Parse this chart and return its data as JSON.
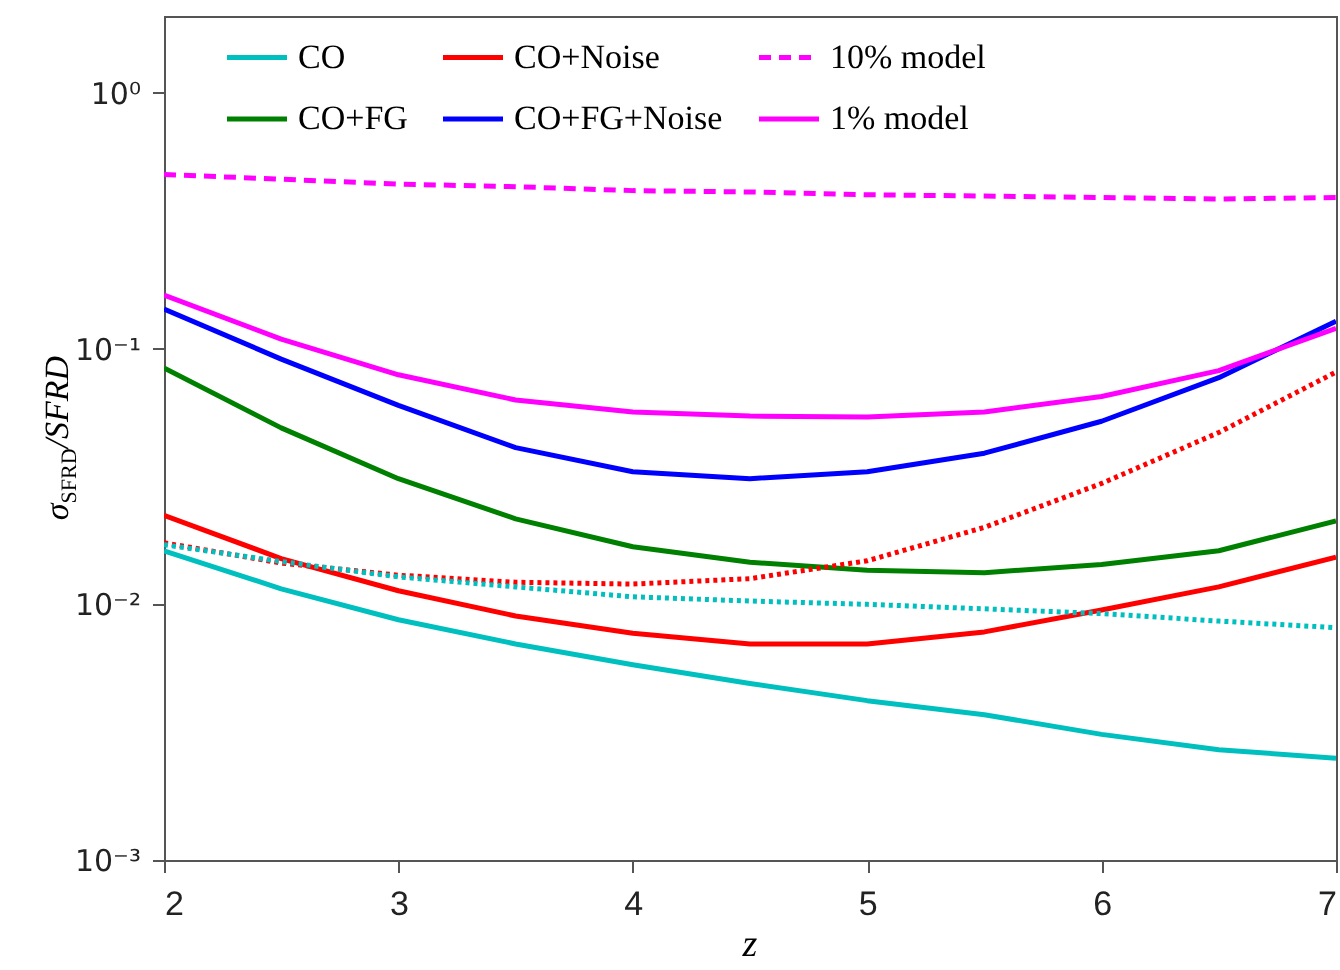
{
  "chart_data": {
    "type": "line",
    "xlabel": "z",
    "ylabel": "σ$_{SFRD}$/SFRD",
    "log": "y",
    "x": [
      2,
      2.5,
      3,
      3.5,
      4,
      4.5,
      5,
      5.5,
      6,
      6.5,
      7
    ],
    "xlim": [
      2,
      7
    ],
    "xticks": [
      2,
      3,
      4,
      5,
      6,
      7
    ],
    "ylim": [
      0.001,
      2
    ],
    "yticks": [
      {
        "value": 0.001,
        "label": "10⁻³"
      },
      {
        "value": 0.01,
        "label": "10⁻²"
      },
      {
        "value": 0.1,
        "label": "10⁻¹"
      },
      {
        "value": 1,
        "label": "10⁰"
      }
    ],
    "legend": "top",
    "series": [
      {
        "name": "CO",
        "color": "#00bfbf",
        "line_style": "solid",
        "values": [
          0.0162,
          0.0115,
          0.0087,
          0.007,
          0.0058,
          0.0049,
          0.0042,
          0.0037,
          0.0031,
          0.0027,
          0.0025
        ]
      },
      {
        "name": "CO+FG",
        "color": "#008000",
        "line_style": "solid",
        "values": [
          0.084,
          0.049,
          0.031,
          0.0216,
          0.0168,
          0.0146,
          0.0136,
          0.0133,
          0.0143,
          0.0162,
          0.0212
        ]
      },
      {
        "name": "CO+Noise",
        "color": "#ff0000",
        "line_style": "solid",
        "values": [
          0.0223,
          0.0151,
          0.0113,
          0.009,
          0.0077,
          0.007,
          0.007,
          0.0078,
          0.0095,
          0.0117,
          0.0153
        ]
      },
      {
        "name": "CO+FG+Noise",
        "color": "#0000ff",
        "line_style": "solid",
        "values": [
          0.143,
          0.091,
          0.06,
          0.041,
          0.033,
          0.031,
          0.033,
          0.039,
          0.052,
          0.077,
          0.128
        ]
      },
      {
        "name": "10% model",
        "color": "#ff00ff",
        "line_style": "dashed",
        "values": [
          0.48,
          0.46,
          0.44,
          0.43,
          0.415,
          0.41,
          0.4,
          0.395,
          0.39,
          0.385,
          0.39
        ]
      },
      {
        "name": "1% model",
        "color": "#ff00ff",
        "line_style": "solid",
        "values": [
          0.162,
          0.109,
          0.079,
          0.063,
          0.0565,
          0.0545,
          0.054,
          0.0565,
          0.065,
          0.082,
          0.12
        ]
      },
      {
        "color": "#ff0000",
        "line_style": "dotted",
        "values": [
          0.0174,
          0.0145,
          0.013,
          0.0122,
          0.012,
          0.0126,
          0.0148,
          0.02,
          0.0297,
          0.047,
          0.081
        ]
      },
      {
        "color": "#00bfbf",
        "line_style": "dotted",
        "values": [
          0.0171,
          0.0147,
          0.0128,
          0.0117,
          0.0107,
          0.0103,
          0.01,
          0.0096,
          0.0092,
          0.0086,
          0.0081
        ]
      }
    ]
  }
}
